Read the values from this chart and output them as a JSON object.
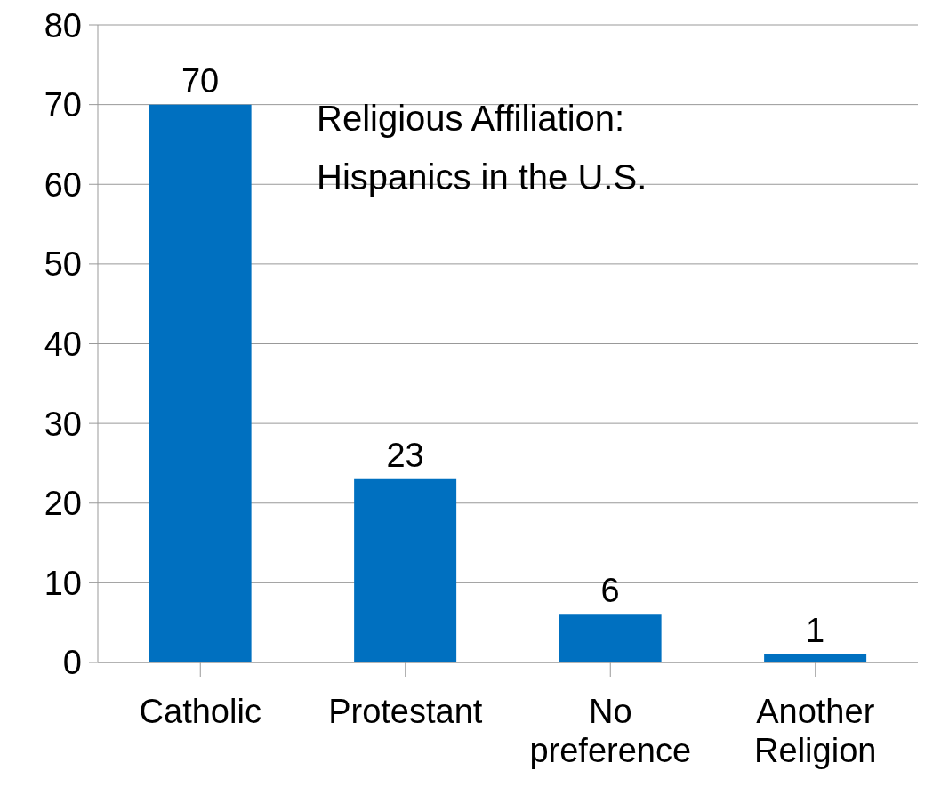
{
  "chart_data": {
    "type": "bar",
    "title": "Religious Affiliation:\nHispanics in the U.S.",
    "categories": [
      "Catholic",
      "Protestant",
      "No preference",
      "Another Religion"
    ],
    "values": [
      70,
      23,
      6,
      1
    ],
    "color": "#0070c0",
    "ylim": [
      0,
      80
    ],
    "yticks": [
      0,
      10,
      20,
      30,
      40,
      50,
      60,
      70,
      80
    ],
    "grid": "y",
    "data_labels": true
  }
}
